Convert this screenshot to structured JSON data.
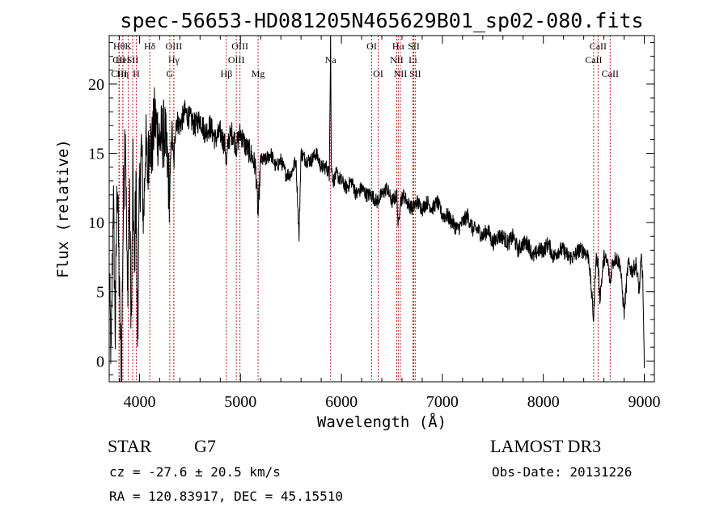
{
  "chart_data": {
    "type": "line",
    "title": "spec-56653-HD081205N465629B01_sp02-080.fits",
    "xlabel": "Wavelength (Å)",
    "ylabel": "Flux (relative)",
    "xlim": [
      3700,
      9100
    ],
    "ylim": [
      -1.5,
      23.5
    ],
    "x_ticks": [
      4000,
      5000,
      6000,
      7000,
      8000,
      9000
    ],
    "y_ticks": [
      0,
      5,
      10,
      15,
      20
    ],
    "grid": false,
    "series": [
      {
        "name": "flux",
        "x": [
          3700,
          3720,
          3740,
          3760,
          3780,
          3800,
          3820,
          3840,
          3860,
          3880,
          3900,
          3920,
          3935,
          3950,
          3965,
          3980,
          4000,
          4020,
          4040,
          4060,
          4080,
          4100,
          4120,
          4150,
          4200,
          4250,
          4300,
          4320,
          4340,
          4360,
          4400,
          4450,
          4500,
          4550,
          4600,
          4650,
          4700,
          4750,
          4800,
          4850,
          4861,
          4880,
          4920,
          4960,
          5000,
          5050,
          5100,
          5150,
          5175,
          5200,
          5250,
          5300,
          5350,
          5400,
          5450,
          5500,
          5550,
          5580,
          5600,
          5650,
          5700,
          5750,
          5800,
          5850,
          5880,
          5893,
          5900,
          5920,
          5950,
          6000,
          6050,
          6100,
          6150,
          6200,
          6250,
          6300,
          6350,
          6400,
          6450,
          6500,
          6550,
          6563,
          6580,
          6620,
          6650,
          6700,
          6750,
          6800,
          6850,
          6900,
          6950,
          7000,
          7050,
          7100,
          7150,
          7200,
          7250,
          7300,
          7350,
          7400,
          7450,
          7500,
          7550,
          7600,
          7650,
          7700,
          7750,
          7800,
          7850,
          7900,
          7950,
          8000,
          8050,
          8100,
          8150,
          8200,
          8250,
          8300,
          8350,
          8400,
          8450,
          8498,
          8520,
          8542,
          8560,
          8600,
          8640,
          8662,
          8680,
          8720,
          8760,
          8800,
          8840,
          8880,
          8920,
          8950,
          8970,
          8985,
          9000
        ],
        "values": [
          6.0,
          0.0,
          12.5,
          2.0,
          14.0,
          5.0,
          -1.5,
          11.0,
          17.5,
          4.5,
          12.0,
          2.5,
          13.5,
          6.0,
          14.0,
          1.5,
          12.0,
          15.5,
          10.0,
          16.0,
          13.5,
          16.5,
          15.0,
          17.5,
          16.0,
          16.5,
          12.0,
          17.0,
          14.0,
          17.5,
          17.0,
          18.0,
          17.5,
          17.0,
          17.5,
          16.5,
          17.0,
          16.0,
          16.5,
          15.5,
          14.0,
          16.0,
          16.5,
          15.5,
          16.5,
          15.5,
          15.0,
          14.0,
          10.5,
          14.5,
          14.5,
          15.0,
          14.0,
          14.5,
          13.5,
          13.5,
          14.5,
          9.0,
          15.0,
          14.5,
          14.5,
          15.0,
          14.0,
          14.0,
          13.5,
          23.5,
          14.0,
          13.0,
          13.5,
          13.0,
          12.5,
          13.0,
          12.0,
          12.5,
          12.0,
          12.0,
          11.5,
          12.0,
          12.5,
          11.5,
          12.0,
          9.5,
          11.5,
          12.0,
          11.5,
          11.0,
          11.5,
          11.0,
          11.5,
          11.0,
          11.5,
          10.5,
          10.5,
          10.0,
          9.5,
          10.0,
          10.5,
          9.5,
          9.5,
          9.0,
          9.5,
          8.5,
          9.0,
          9.0,
          8.5,
          9.0,
          8.0,
          8.5,
          8.5,
          7.5,
          8.0,
          8.0,
          8.5,
          7.5,
          8.0,
          8.0,
          7.5,
          7.5,
          8.0,
          8.0,
          7.5,
          3.0,
          7.5,
          7.0,
          4.5,
          7.5,
          7.0,
          5.5,
          7.0,
          7.5,
          7.0,
          3.5,
          7.0,
          6.5,
          7.0,
          5.0,
          7.5,
          6.0,
          -0.5
        ]
      }
    ],
    "spectral_lines": [
      {
        "label": "Hθ",
        "x": 3798,
        "row": 0
      },
      {
        "label": "CII",
        "x": 3798,
        "row": 1
      },
      {
        "label": "CIII",
        "x": 3798,
        "row": 2
      },
      {
        "label": "HeI",
        "x": 3835,
        "row": 1
      },
      {
        "label": "Hη",
        "x": 3835,
        "row": 2
      },
      {
        "label": "K",
        "x": 3889,
        "row": 0
      },
      {
        "label": "SII",
        "x": 3933,
        "row": 1
      },
      {
        "label": "H",
        "x": 3968,
        "row": 2
      },
      {
        "label": "Hδ",
        "x": 4102,
        "row": 0
      },
      {
        "label": "OIII",
        "x": 4340,
        "row": 0
      },
      {
        "label": "Hγ",
        "x": 4340,
        "row": 1
      },
      {
        "label": "G",
        "x": 4300,
        "row": 2
      },
      {
        "label": "Hβ",
        "x": 4861,
        "row": 2
      },
      {
        "label": "OIII",
        "x": 4995,
        "row": 0
      },
      {
        "label": "OIII",
        "x": 4959,
        "row": 1
      },
      {
        "label": "Mg",
        "x": 5175,
        "row": 2
      },
      {
        "label": "Na",
        "x": 5893,
        "row": 1
      },
      {
        "label": "OI",
        "x": 6300,
        "row": 0
      },
      {
        "label": "OI",
        "x": 6364,
        "row": 2
      },
      {
        "label": "Hα",
        "x": 6563,
        "row": 0
      },
      {
        "label": "NII",
        "x": 6548,
        "row": 1
      },
      {
        "label": "NII",
        "x": 6584,
        "row": 2
      },
      {
        "label": "SII",
        "x": 6717,
        "row": 0
      },
      {
        "label": "Li",
        "x": 6708,
        "row": 1
      },
      {
        "label": "SII",
        "x": 6731,
        "row": 2
      },
      {
        "label": "CaII",
        "x": 8542,
        "row": 0
      },
      {
        "label": "CaII",
        "x": 8498,
        "row": 1
      },
      {
        "label": "CaII",
        "x": 8662,
        "row": 2
      }
    ]
  },
  "info": {
    "object_class": "STAR",
    "subclass": "G7",
    "survey": "LAMOST DR3",
    "redshift": "cz = -27.6 ± 20.5 km/s",
    "obs_date": "Obs-Date: 20131226",
    "coords": "RA = 120.83917, DEC =  45.15510"
  },
  "colors": {
    "axes": "#000000",
    "spectrum": "#000000",
    "line_markers": "#cc2222"
  }
}
